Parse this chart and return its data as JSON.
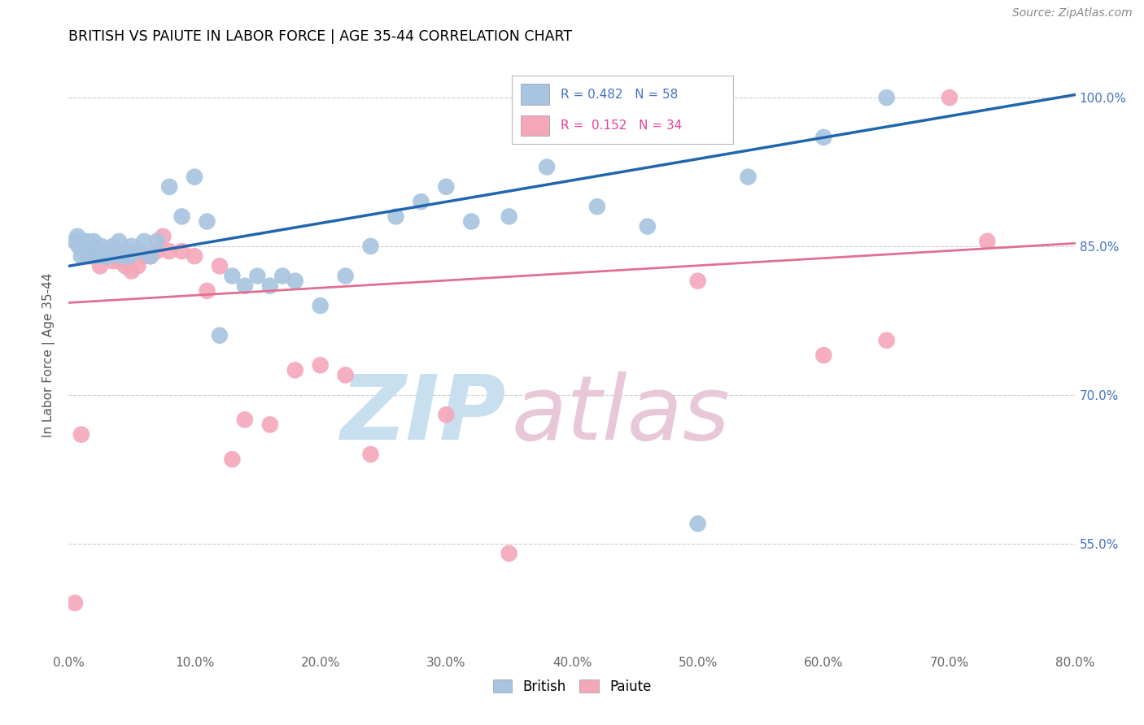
{
  "title": "BRITISH VS PAIUTE IN LABOR FORCE | AGE 35-44 CORRELATION CHART",
  "source": "Source: ZipAtlas.com",
  "ylabel": "In Labor Force | Age 35-44",
  "xlim": [
    0.0,
    0.8
  ],
  "ylim": [
    0.44,
    1.04
  ],
  "xtick_labels": [
    "0.0%",
    "10.0%",
    "20.0%",
    "30.0%",
    "40.0%",
    "50.0%",
    "60.0%",
    "70.0%",
    "80.0%"
  ],
  "xtick_vals": [
    0.0,
    0.1,
    0.2,
    0.3,
    0.4,
    0.5,
    0.6,
    0.7,
    0.8
  ],
  "ytick_labels": [
    "55.0%",
    "70.0%",
    "85.0%",
    "100.0%"
  ],
  "ytick_vals": [
    0.55,
    0.7,
    0.85,
    1.0
  ],
  "british_color": "#a8c4e0",
  "paiute_color": "#f4a7b9",
  "british_R": 0.482,
  "british_N": 58,
  "paiute_R": 0.152,
  "paiute_N": 34,
  "british_line_color": "#2166ac",
  "paiute_line_color": "#e07090",
  "watermark_zip_color": "#c8dff0",
  "watermark_atlas_color": "#e8c8d8",
  "british_x": [
    0.005,
    0.007,
    0.008,
    0.009,
    0.01,
    0.011,
    0.012,
    0.013,
    0.014,
    0.015,
    0.016,
    0.017,
    0.018,
    0.019,
    0.02,
    0.022,
    0.024,
    0.026,
    0.028,
    0.03,
    0.032,
    0.035,
    0.038,
    0.04,
    0.042,
    0.045,
    0.048,
    0.05,
    0.055,
    0.06,
    0.065,
    0.07,
    0.08,
    0.09,
    0.1,
    0.11,
    0.12,
    0.13,
    0.14,
    0.15,
    0.16,
    0.17,
    0.18,
    0.2,
    0.22,
    0.24,
    0.26,
    0.28,
    0.3,
    0.32,
    0.35,
    0.38,
    0.42,
    0.46,
    0.5,
    0.54,
    0.6,
    0.65
  ],
  "british_y": [
    0.855,
    0.86,
    0.85,
    0.855,
    0.84,
    0.845,
    0.855,
    0.845,
    0.85,
    0.855,
    0.845,
    0.84,
    0.85,
    0.845,
    0.855,
    0.84,
    0.845,
    0.85,
    0.84,
    0.845,
    0.84,
    0.85,
    0.845,
    0.855,
    0.84,
    0.845,
    0.84,
    0.85,
    0.845,
    0.855,
    0.84,
    0.855,
    0.91,
    0.88,
    0.92,
    0.875,
    0.76,
    0.82,
    0.81,
    0.82,
    0.81,
    0.82,
    0.815,
    0.79,
    0.82,
    0.85,
    0.88,
    0.895,
    0.91,
    0.875,
    0.88,
    0.93,
    0.89,
    0.87,
    0.57,
    0.92,
    0.96,
    1.0
  ],
  "paiute_x": [
    0.005,
    0.01,
    0.015,
    0.02,
    0.025,
    0.03,
    0.035,
    0.04,
    0.045,
    0.05,
    0.055,
    0.06,
    0.065,
    0.07,
    0.075,
    0.08,
    0.09,
    0.1,
    0.11,
    0.12,
    0.13,
    0.14,
    0.16,
    0.18,
    0.2,
    0.22,
    0.24,
    0.3,
    0.35,
    0.5,
    0.6,
    0.65,
    0.7,
    0.73
  ],
  "paiute_y": [
    0.49,
    0.66,
    0.84,
    0.84,
    0.83,
    0.84,
    0.835,
    0.835,
    0.83,
    0.825,
    0.83,
    0.84,
    0.84,
    0.845,
    0.86,
    0.845,
    0.845,
    0.84,
    0.805,
    0.83,
    0.635,
    0.675,
    0.67,
    0.725,
    0.73,
    0.72,
    0.64,
    0.68,
    0.54,
    0.815,
    0.74,
    0.755,
    1.0,
    0.855
  ],
  "brit_line_x0": 0.0,
  "brit_line_y0": 0.83,
  "brit_line_x1": 0.8,
  "brit_line_y1": 1.003,
  "paiute_line_x0": 0.0,
  "paiute_line_y0": 0.793,
  "paiute_line_x1": 0.8,
  "paiute_line_y1": 0.853
}
